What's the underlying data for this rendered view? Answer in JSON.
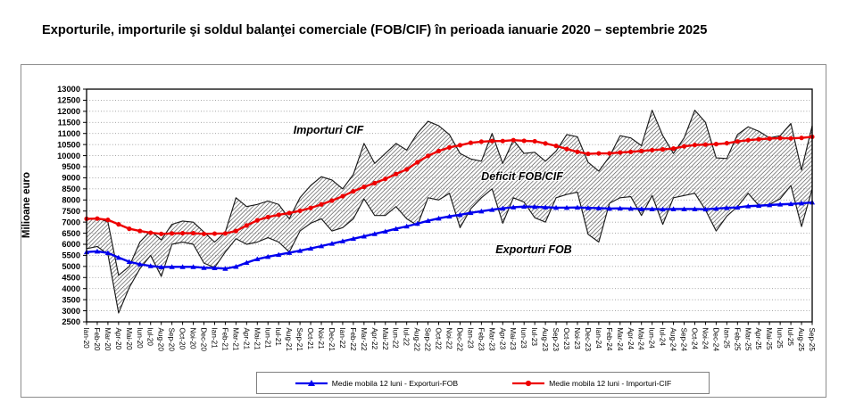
{
  "title": "Exporturile, importurile şi soldul balanţei comerciale (FOB/CIF) în perioada ianuarie 2020 – septembrie 2025",
  "y_axis_title": "Milioane  euro",
  "annotations": {
    "imports_label": "Importuri CIF",
    "deficit_label": "Deficit FOB/CIF",
    "exports_label": "Exporturi FOB"
  },
  "legend": {
    "exports_ma_label": "Medie mobila 12 luni - Exporturi-FOB",
    "imports_ma_label": "Medie mobila 12 luni - Importuri-CIF"
  },
  "colors": {
    "exports_ma": "#0000ee",
    "imports_ma": "#ee0000",
    "band_outline": "#1a1a1a",
    "grid": "#999999"
  },
  "chart_data": {
    "type": "line",
    "title": "Exporturile, importurile şi soldul balanţei comerciale (FOB/CIF) în perioada ianuarie 2020 – septembrie 2025",
    "ylabel": "Milioane euro",
    "ylim": [
      2500,
      13000
    ],
    "ytick_step": 500,
    "grid": "horizontal-dotted",
    "legend_position": "bottom",
    "x": [
      "Ian-20",
      "Feb-20",
      "Mar-20",
      "Apr-20",
      "Mai-20",
      "Iun-20",
      "Iul-20",
      "Aug-20",
      "Sep-20",
      "Oct-20",
      "Noi-20",
      "Dec-20",
      "Ian-21",
      "Feb-21",
      "Mar-21",
      "Apr-21",
      "Mai-21",
      "Iun-21",
      "Iul-21",
      "Aug-21",
      "Sep-21",
      "Oct-21",
      "Noi-21",
      "Dec-21",
      "Ian-22",
      "Feb-22",
      "Mar-22",
      "Apr-22",
      "Mai-22",
      "Iun-22",
      "Iul-22",
      "Aug-22",
      "Sep-22",
      "Oct-22",
      "Noi-22",
      "Dec-22",
      "Ian-23",
      "Feb-23",
      "Mar-23",
      "Apr-23",
      "Mai-23",
      "Iun-23",
      "Iul-23",
      "Aug-23",
      "Sep-23",
      "Oct-23",
      "Noi-23",
      "Dec-23",
      "Ian-24",
      "Feb-24",
      "Mar-24",
      "Apr-24",
      "Mai-24",
      "Iun-24",
      "Iul-24",
      "Aug-24",
      "Sep-24",
      "Oct-24",
      "Noi-24",
      "Dec-24",
      "Ian-25",
      "Feb-25",
      "Mar-25",
      "Apr-25",
      "Mai-25",
      "Iun-25",
      "Iul-25",
      "Aug-25",
      "Sep-25"
    ],
    "series": [
      {
        "name": "Exporturi FOB (lunar)",
        "style": "band-lower",
        "color": "#1a1a1a",
        "values": [
          5800,
          5900,
          5550,
          2900,
          4050,
          4900,
          5500,
          4550,
          6000,
          6100,
          6000,
          5150,
          4950,
          5650,
          6250,
          6000,
          6100,
          6300,
          6100,
          5650,
          6600,
          6950,
          7150,
          6600,
          6750,
          7150,
          8050,
          7300,
          7300,
          7700,
          7150,
          6850,
          8100,
          8000,
          8300,
          6750,
          7600,
          8100,
          8500,
          6950,
          8100,
          7900,
          7200,
          7000,
          8100,
          8250,
          8350,
          6450,
          6100,
          7850,
          8100,
          8150,
          7300,
          8200,
          6900,
          8100,
          8200,
          8300,
          7550,
          6600,
          7270,
          7700,
          8300,
          7750,
          7800,
          8050,
          8650,
          6800,
          8500
        ]
      },
      {
        "name": "Importuri CIF (lunar)",
        "style": "band-upper",
        "color": "#1a1a1a",
        "values": [
          7100,
          7200,
          7000,
          4600,
          5000,
          6100,
          6600,
          6200,
          6900,
          7050,
          7000,
          6550,
          6100,
          6550,
          8100,
          7700,
          7800,
          7950,
          7800,
          7150,
          8100,
          8650,
          9050,
          8900,
          8500,
          9150,
          10550,
          9650,
          10100,
          10550,
          10250,
          11000,
          11550,
          11350,
          10950,
          10100,
          9850,
          9750,
          11000,
          9650,
          10700,
          10100,
          10150,
          9750,
          10200,
          10950,
          10850,
          9700,
          9300,
          9950,
          10900,
          10800,
          10450,
          12050,
          10900,
          10100,
          10800,
          12050,
          11500,
          9900,
          9870,
          10950,
          11300,
          11100,
          10800,
          10900,
          11450,
          9350,
          11350
        ]
      },
      {
        "name": "Medie mobila 12 luni - Exporturi-FOB",
        "style": "line-triangle",
        "color": "#0000ee",
        "values": [
          5650,
          5680,
          5610,
          5400,
          5210,
          5100,
          5020,
          4970,
          4980,
          4980,
          4980,
          4940,
          4930,
          4900,
          4990,
          5170,
          5330,
          5440,
          5530,
          5620,
          5710,
          5810,
          5920,
          6030,
          6140,
          6250,
          6360,
          6470,
          6580,
          6700,
          6810,
          6930,
          7060,
          7170,
          7260,
          7330,
          7420,
          7490,
          7560,
          7620,
          7670,
          7700,
          7690,
          7670,
          7650,
          7650,
          7660,
          7640,
          7630,
          7610,
          7620,
          7610,
          7590,
          7590,
          7580,
          7590,
          7590,
          7590,
          7580,
          7610,
          7640,
          7660,
          7720,
          7740,
          7770,
          7800,
          7820,
          7850,
          7890
        ]
      },
      {
        "name": "Medie mobila 12 luni - Importuri-CIF",
        "style": "line-circle",
        "color": "#ee0000",
        "values": [
          7150,
          7160,
          7100,
          6900,
          6700,
          6600,
          6520,
          6470,
          6490,
          6500,
          6500,
          6470,
          6480,
          6490,
          6600,
          6850,
          7080,
          7230,
          7330,
          7410,
          7510,
          7640,
          7800,
          7970,
          8170,
          8390,
          8590,
          8760,
          8950,
          9170,
          9380,
          9700,
          9990,
          10210,
          10370,
          10470,
          10580,
          10630,
          10660,
          10660,
          10700,
          10670,
          10650,
          10550,
          10440,
          10300,
          10170,
          10080,
          10100,
          10100,
          10140,
          10170,
          10210,
          10250,
          10280,
          10320,
          10420,
          10480,
          10500,
          10520,
          10560,
          10640,
          10700,
          10740,
          10770,
          10790,
          10780,
          10800,
          10850
        ]
      }
    ]
  }
}
